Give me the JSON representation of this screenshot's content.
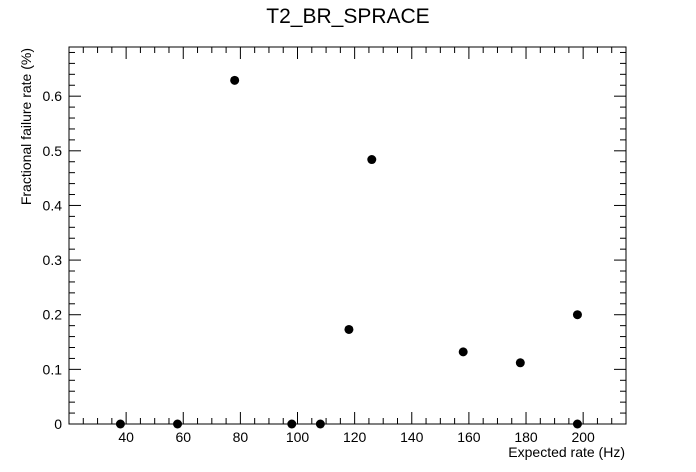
{
  "chart_data": {
    "type": "scatter",
    "title": "T2_BR_SPRACE",
    "xlabel": "Expected rate (Hz)",
    "ylabel": "Fractional failure rate (%)",
    "xlim": [
      20,
      215
    ],
    "ylim": [
      0,
      0.69
    ],
    "xticks": [
      40,
      60,
      80,
      100,
      120,
      140,
      160,
      180,
      200
    ],
    "yticks": [
      0,
      0.1,
      0.2,
      0.3,
      0.4,
      0.5,
      0.6
    ],
    "ytick_labels": [
      "0",
      "0.1",
      "0.2",
      "0.3",
      "0.4",
      "0.5",
      "0.6"
    ],
    "grid": false,
    "marker_color": "#000000",
    "points": [
      {
        "x": 38,
        "y": 0
      },
      {
        "x": 58,
        "y": 0
      },
      {
        "x": 78,
        "y": 0.629
      },
      {
        "x": 98,
        "y": 0
      },
      {
        "x": 108,
        "y": 0
      },
      {
        "x": 118,
        "y": 0.173
      },
      {
        "x": 126,
        "y": 0.484
      },
      {
        "x": 158,
        "y": 0.132
      },
      {
        "x": 178,
        "y": 0.112
      },
      {
        "x": 198,
        "y": 0.2
      },
      {
        "x": 198,
        "y": 0
      }
    ]
  }
}
